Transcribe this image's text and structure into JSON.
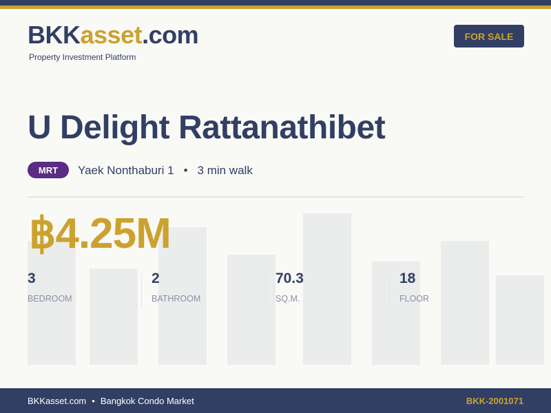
{
  "brand": {
    "name_part1": "BKK",
    "name_part2": "asset",
    "name_part3": ".com",
    "tagline": "Property Investment Platform"
  },
  "status_badge": "FOR SALE",
  "listing": {
    "title": "U Delight Rattanathibet",
    "transit_type": "MRT",
    "station": "Yaek Nonthaburi 1",
    "separator": "•",
    "walk": "3 min walk",
    "price": "฿4.25M",
    "stats": [
      {
        "value": "3",
        "label": "BEDROOM"
      },
      {
        "value": "2",
        "label": "BATHROOM"
      },
      {
        "value": "70.3",
        "label": "SQ.M."
      },
      {
        "value": "18",
        "label": "FLOOR"
      }
    ]
  },
  "footer": {
    "site": "BKKasset.com",
    "separator": "•",
    "market": "Bangkok Condo Market",
    "ref": "BKK-2001071"
  },
  "colors": {
    "navy": "#323f64",
    "gold": "#cba22e",
    "mrt_purple": "#5b2c83"
  }
}
